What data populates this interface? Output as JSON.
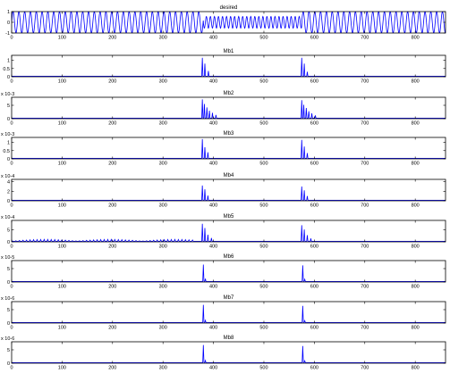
{
  "figure": {
    "line_color": "#0000ff",
    "axes_color": "#000000",
    "background": "#ffffff"
  },
  "chart_data": [
    {
      "type": "line",
      "title": "desired",
      "xlim": [
        0,
        860
      ],
      "ylim": [
        -1,
        1
      ],
      "yticks": [
        {
          "v": 1,
          "label": "1"
        },
        {
          "v": 0,
          "label": "0"
        },
        {
          "v": -1,
          "label": "-1"
        }
      ],
      "xticks": [
        0,
        100,
        200,
        300,
        400,
        500,
        600,
        700,
        800
      ],
      "exponent": "",
      "signal": {
        "kind": "sine",
        "period": 11.5,
        "amplitude": 1,
        "damped_segments": [
          {
            "from": 380,
            "to": 575,
            "amplitude": 0.55,
            "period": 8
          }
        ]
      }
    },
    {
      "type": "line",
      "title": "Mb1",
      "xlim": [
        0,
        860
      ],
      "ylim": [
        0,
        1.3
      ],
      "yticks": [
        {
          "v": 1,
          "label": "1"
        },
        {
          "v": 0.5,
          "label": "0.5"
        },
        {
          "v": 0,
          "label": "0"
        }
      ],
      "xticks": [
        0,
        100,
        200,
        300,
        400,
        500,
        600,
        700,
        800
      ],
      "exponent": "",
      "spikes": [
        {
          "x": 378,
          "y": 1.15
        },
        {
          "x": 383,
          "y": 0.8
        },
        {
          "x": 390,
          "y": 0.35
        },
        {
          "x": 575,
          "y": 1.15
        },
        {
          "x": 580,
          "y": 0.8
        },
        {
          "x": 586,
          "y": 0.3
        }
      ]
    },
    {
      "type": "line",
      "title": "Mb2",
      "xlim": [
        0,
        860
      ],
      "ylim": [
        0,
        8
      ],
      "yticks": [
        {
          "v": 5,
          "label": "5"
        },
        {
          "v": 0,
          "label": "0"
        }
      ],
      "xticks": [
        0,
        100,
        200,
        300,
        400,
        500,
        600,
        700,
        800
      ],
      "exponent": "x 10-3",
      "spikes": [
        {
          "x": 378,
          "y": 7.2
        },
        {
          "x": 382,
          "y": 5.5
        },
        {
          "x": 387,
          "y": 4.2
        },
        {
          "x": 392,
          "y": 3.0
        },
        {
          "x": 398,
          "y": 2.2
        },
        {
          "x": 405,
          "y": 1.4
        },
        {
          "x": 575,
          "y": 6.9
        },
        {
          "x": 579,
          "y": 5.2
        },
        {
          "x": 584,
          "y": 4.0
        },
        {
          "x": 589,
          "y": 2.8
        },
        {
          "x": 595,
          "y": 2.0
        },
        {
          "x": 602,
          "y": 1.2
        }
      ]
    },
    {
      "type": "line",
      "title": "Mb3",
      "xlim": [
        0,
        860
      ],
      "ylim": [
        0,
        1.3
      ],
      "yticks": [
        {
          "v": 1,
          "label": "1"
        },
        {
          "v": 0.5,
          "label": "0.5"
        },
        {
          "v": 0,
          "label": "0"
        }
      ],
      "xticks": [
        0,
        100,
        200,
        300,
        400,
        500,
        600,
        700,
        800
      ],
      "exponent": "x 10-3",
      "spikes": [
        {
          "x": 378,
          "y": 1.2
        },
        {
          "x": 383,
          "y": 0.7
        },
        {
          "x": 389,
          "y": 0.4
        },
        {
          "x": 575,
          "y": 1.15
        },
        {
          "x": 580,
          "y": 0.75
        },
        {
          "x": 586,
          "y": 0.35
        }
      ]
    },
    {
      "type": "line",
      "title": "Mb4",
      "xlim": [
        0,
        860
      ],
      "ylim": [
        0,
        4.5
      ],
      "yticks": [
        {
          "v": 4,
          "label": "4"
        },
        {
          "v": 2,
          "label": "2"
        },
        {
          "v": 0,
          "label": "0"
        }
      ],
      "xticks": [
        0,
        100,
        200,
        300,
        400,
        500,
        600,
        700,
        800
      ],
      "exponent": "x 10-4",
      "spikes": [
        {
          "x": 378,
          "y": 3.2
        },
        {
          "x": 383,
          "y": 2.4
        },
        {
          "x": 389,
          "y": 1.1
        },
        {
          "x": 575,
          "y": 3.0
        },
        {
          "x": 580,
          "y": 2.2
        },
        {
          "x": 586,
          "y": 1.0
        }
      ]
    },
    {
      "type": "line",
      "title": "Mb5",
      "xlim": [
        0,
        860
      ],
      "ylim": [
        0,
        9
      ],
      "yticks": [
        {
          "v": 5,
          "label": "5"
        },
        {
          "v": 0,
          "label": "0"
        }
      ],
      "xticks": [
        0,
        100,
        200,
        300,
        400,
        500,
        600,
        700,
        800
      ],
      "exponent": "x 10-4",
      "spikes": [
        {
          "x": 378,
          "y": 7.6
        },
        {
          "x": 383,
          "y": 5.8
        },
        {
          "x": 389,
          "y": 3.0
        },
        {
          "x": 396,
          "y": 1.6
        },
        {
          "x": 575,
          "y": 7.0
        },
        {
          "x": 580,
          "y": 5.2
        },
        {
          "x": 586,
          "y": 2.8
        },
        {
          "x": 593,
          "y": 1.4
        }
      ],
      "low_ripple": {
        "from": 0,
        "to": 360,
        "max": 1.0
      }
    },
    {
      "type": "line",
      "title": "Mb6",
      "xlim": [
        0,
        860
      ],
      "ylim": [
        0,
        8
      ],
      "yticks": [
        {
          "v": 5,
          "label": "5"
        },
        {
          "v": 0,
          "label": "0"
        }
      ],
      "xticks": [
        0,
        100,
        200,
        300,
        400,
        500,
        600,
        700,
        800
      ],
      "exponent": "x 10-5",
      "spikes": [
        {
          "x": 380,
          "y": 6.5
        },
        {
          "x": 384,
          "y": 1.2
        },
        {
          "x": 577,
          "y": 6.2
        },
        {
          "x": 581,
          "y": 1.0
        }
      ]
    },
    {
      "type": "line",
      "title": "Mb7",
      "xlim": [
        0,
        860
      ],
      "ylim": [
        0,
        8
      ],
      "yticks": [
        {
          "v": 5,
          "label": "5"
        },
        {
          "v": 0,
          "label": "0"
        }
      ],
      "xticks": [
        0,
        100,
        200,
        300,
        400,
        500,
        600,
        700,
        800
      ],
      "exponent": "x 10-6",
      "spikes": [
        {
          "x": 380,
          "y": 6.8
        },
        {
          "x": 384,
          "y": 1.0
        },
        {
          "x": 577,
          "y": 6.4
        },
        {
          "x": 581,
          "y": 0.9
        }
      ]
    },
    {
      "type": "line",
      "title": "Mb8",
      "xlim": [
        0,
        860
      ],
      "ylim": [
        0,
        8
      ],
      "yticks": [
        {
          "v": 5,
          "label": "5"
        },
        {
          "v": 0,
          "label": "0"
        }
      ],
      "xticks": [
        0,
        100,
        200,
        300,
        400,
        500,
        600,
        700,
        800
      ],
      "exponent": "x 10-6",
      "spikes": [
        {
          "x": 380,
          "y": 6.8
        },
        {
          "x": 384,
          "y": 1.0
        },
        {
          "x": 577,
          "y": 6.4
        },
        {
          "x": 581,
          "y": 0.9
        }
      ]
    }
  ]
}
